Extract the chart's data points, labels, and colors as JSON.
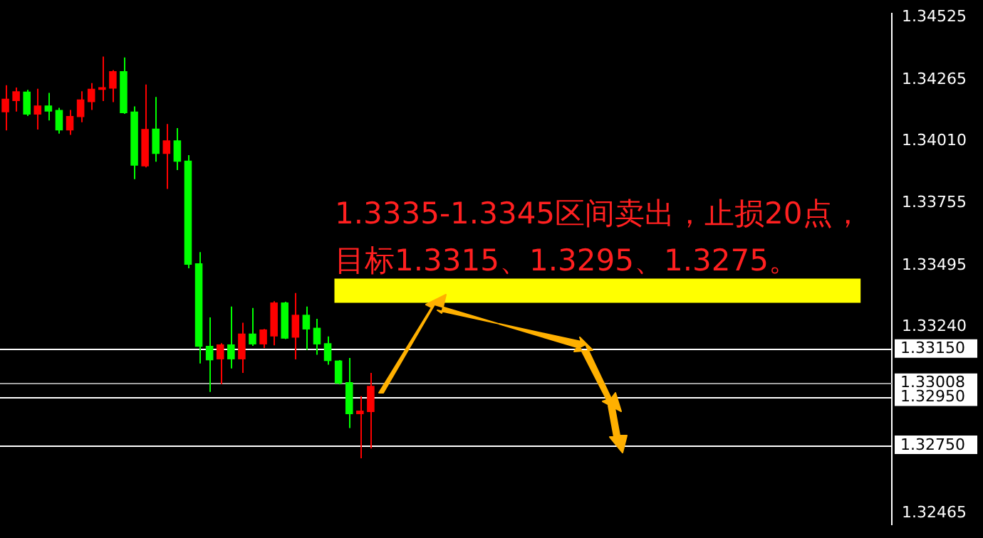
{
  "chart_data": {
    "type": "candlestick",
    "categories": [
      null,
      null,
      null,
      null,
      null,
      null,
      null,
      null,
      null,
      null,
      null,
      null,
      null,
      null,
      null,
      null,
      null,
      null,
      null,
      null,
      null,
      null,
      null,
      null,
      null,
      null,
      null,
      null,
      null,
      null,
      null,
      null,
      null,
      null,
      null,
      null,
      null,
      null,
      null,
      null,
      null,
      null,
      null,
      null,
      null,
      null,
      null,
      null,
      null,
      null,
      null,
      null,
      null,
      null,
      null,
      null,
      null,
      null,
      null,
      null,
      null,
      null,
      null,
      null,
      null,
      null,
      null,
      null,
      null,
      null,
      null,
      null,
      null,
      null,
      null,
      null,
      null,
      null,
      null,
      null,
      null,
      null,
      null
    ],
    "ohlc": [
      [
        1.34187,
        1.34243,
        1.34055,
        1.34131
      ],
      [
        1.34218,
        1.34233,
        1.34134,
        1.34177
      ],
      [
        1.34121,
        1.34224,
        1.34115,
        1.34216
      ],
      [
        1.34159,
        1.34228,
        1.34059,
        1.34121
      ],
      [
        1.34134,
        1.34211,
        1.34097,
        1.34159
      ],
      [
        1.34055,
        1.34149,
        1.34042,
        1.3414
      ],
      [
        1.34115,
        1.3414,
        1.34037,
        1.34055
      ],
      [
        1.34184,
        1.34218,
        1.34089,
        1.34111
      ],
      [
        1.34228,
        1.34252,
        1.3414,
        1.34173
      ],
      [
        1.34235,
        1.34362,
        1.34177,
        1.34224
      ],
      [
        1.34301,
        1.34306,
        1.34173,
        1.34229
      ],
      [
        1.34127,
        1.34358,
        1.34124,
        1.34301
      ],
      [
        1.33909,
        1.34155,
        1.33853,
        1.34134
      ],
      [
        1.34061,
        1.34246,
        1.33902,
        1.33906
      ],
      [
        1.33958,
        1.34194,
        1.33925,
        1.34063
      ],
      [
        1.34014,
        1.34082,
        1.33812,
        1.33958
      ],
      [
        1.33925,
        1.34065,
        1.33891,
        1.34014
      ],
      [
        1.33498,
        1.33953,
        1.33483,
        1.3393
      ],
      [
        1.33157,
        1.3355,
        1.33088,
        1.33504
      ],
      [
        1.33101,
        1.33279,
        1.3297,
        1.33161
      ],
      [
        1.33167,
        1.33172,
        1.33002,
        1.33105
      ],
      [
        1.33105,
        1.33324,
        1.33067,
        1.33167
      ],
      [
        1.33212,
        1.33257,
        1.33049,
        1.33105
      ],
      [
        1.33167,
        1.33318,
        1.33161,
        1.33212
      ],
      [
        1.33229,
        1.33231,
        1.33152,
        1.33167
      ],
      [
        1.33341,
        1.33346,
        1.33163,
        1.332
      ],
      [
        1.33191,
        1.33344,
        1.33189,
        1.33341
      ],
      [
        1.3329,
        1.3338,
        1.33105,
        1.33195
      ],
      [
        1.33229,
        1.33324,
        1.33144,
        1.3329
      ],
      [
        1.33167,
        1.33273,
        1.33124,
        1.33236
      ],
      [
        1.33098,
        1.332,
        1.33083,
        1.33172
      ],
      [
        1.33004,
        1.33102,
        1.33001,
        1.331
      ],
      [
        1.32877,
        1.33111,
        1.3282,
        1.3301
      ],
      [
        1.32892,
        1.32952,
        1.32694,
        1.32877
      ],
      [
        1.32995,
        1.33049,
        1.32735,
        1.32886
      ],
      null,
      null,
      null,
      null,
      null,
      null,
      null,
      null,
      null,
      null,
      null,
      null,
      null,
      null,
      null,
      null,
      null,
      null,
      null,
      null,
      null,
      null,
      null,
      null,
      null,
      null,
      null,
      null,
      null,
      null,
      null,
      null,
      null,
      null,
      null,
      null,
      null,
      null,
      null,
      null,
      null,
      null,
      null,
      null,
      null,
      null,
      null,
      null
    ],
    "colors": [
      "#ff0000",
      "#ff0000",
      "#00ff00",
      "#ff0000",
      "#00ff00",
      "#00ff00",
      "#ff0000",
      "#ff0000",
      "#ff0000",
      "#ff0000",
      "#ff0000",
      "#00ff00",
      "#00ff00",
      "#ff0000",
      "#00ff00",
      "#ff0000",
      "#00ff00",
      "#00ff00",
      "#00ff00",
      "#00ff00",
      "#ff0000",
      "#00ff00",
      "#ff0000",
      "#00ff00",
      "#ff0000",
      "#ff0000",
      "#00ff00",
      "#ff0000",
      "#00ff00",
      "#00ff00",
      "#00ff00",
      "#00ff00",
      "#00ff00",
      "#ff0000",
      "#ff0000",
      null,
      null,
      null,
      null,
      null,
      null,
      null,
      null,
      null,
      null,
      null,
      null,
      null,
      null,
      null,
      null,
      null,
      null,
      null,
      null,
      null,
      null,
      null,
      null,
      null,
      null,
      null,
      null,
      null,
      null,
      null,
      null,
      null,
      null,
      null,
      null,
      null,
      null,
      null,
      null,
      null,
      null,
      null,
      null,
      null,
      null,
      null,
      null
    ],
    "ylim": [
      1.3242,
      1.3454
    ],
    "yticks": [
      1.34525,
      1.34265,
      {
        "value": 1.3401,
        "label": "1.34010"
      },
      1.33755,
      1.33495,
      {
        "value": 1.3324,
        "label": "1.33240"
      },
      1.32465
    ],
    "tick_labels": "y",
    "ref_lines": [
      {
        "axis": "y",
        "value": 1.3315,
        "label": "1.33150",
        "color": "#ffffff"
      },
      {
        "axis": "y",
        "value": 1.33008,
        "label": "1.33008",
        "color": "#a0a0a0"
      },
      {
        "axis": "y",
        "value": 1.3295,
        "label": "1.32950",
        "color": "#ffffff"
      },
      {
        "axis": "y",
        "value": 1.3275,
        "label": "1.32750",
        "color": "#ffffff"
      }
    ],
    "bands": [
      {
        "axis": "y",
        "from": 1.3334,
        "to": 1.3344,
        "color": "#ffff00"
      }
    ],
    "annotations": [
      "1.3335-1.3345区间卖出，止损20点，",
      "目标1.3315、1.3295、1.3275。"
    ]
  }
}
